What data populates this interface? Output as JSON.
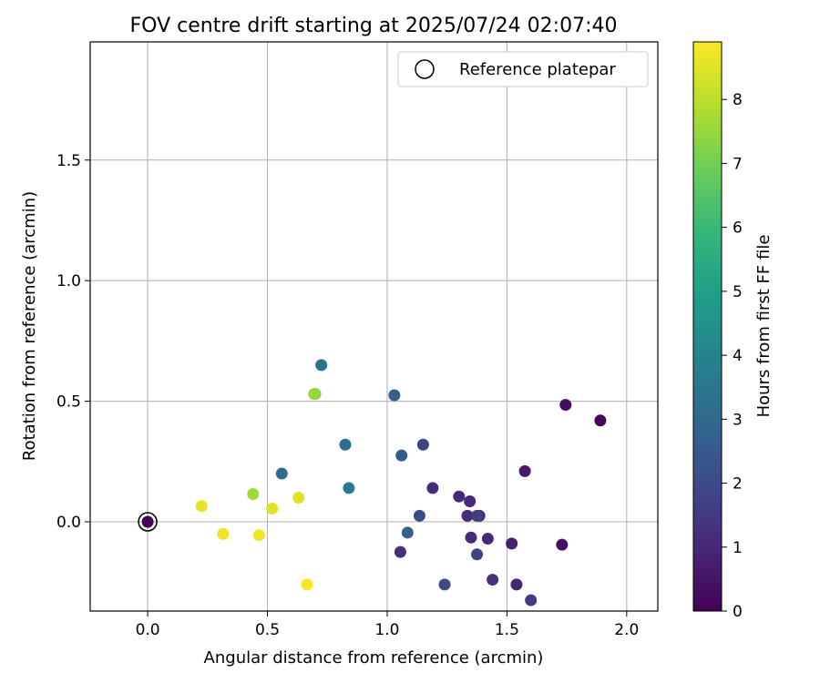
{
  "chart_data": {
    "type": "scatter",
    "title": "FOV centre drift starting at 2025/07/24 02:07:40",
    "xlabel": "Angular distance from reference (arcmin)",
    "ylabel": "Rotation from reference (arcmin)",
    "xlim": [
      -0.24,
      2.13
    ],
    "ylim": [
      -0.37,
      1.99
    ],
    "xticks": [
      0.0,
      0.5,
      1.0,
      1.5,
      2.0
    ],
    "xtick_labels": [
      "0.0",
      "0.5",
      "1.0",
      "1.5",
      "2.0"
    ],
    "yticks": [
      0.0,
      0.5,
      1.0,
      1.5
    ],
    "ytick_labels": [
      "0.0",
      "0.5",
      "1.0",
      "1.5"
    ],
    "grid": true,
    "colorbar": {
      "label": "Hours from first FF file",
      "colormap": "viridis",
      "range": [
        0,
        8.9
      ],
      "ticks": [
        0,
        1,
        2,
        3,
        4,
        5,
        6,
        7,
        8
      ],
      "tick_labels": [
        "0",
        "1",
        "2",
        "3",
        "4",
        "5",
        "6",
        "7",
        "8"
      ]
    },
    "legend": {
      "position": "top-right",
      "label": "Reference platepar"
    },
    "reference_point": {
      "x": 0.0,
      "y": 0.0
    },
    "points": [
      {
        "x": 0.0,
        "y": 0.0,
        "c": 0.0
      },
      {
        "x": 1.89,
        "y": 0.42,
        "c": 0.1
      },
      {
        "x": 1.745,
        "y": 0.485,
        "c": 0.3
      },
      {
        "x": 1.73,
        "y": -0.095,
        "c": 0.4
      },
      {
        "x": 1.575,
        "y": 0.21,
        "c": 0.6
      },
      {
        "x": 1.52,
        "y": -0.09,
        "c": 0.8
      },
      {
        "x": 1.54,
        "y": -0.26,
        "c": 0.9
      },
      {
        "x": 1.42,
        "y": -0.07,
        "c": 1.0
      },
      {
        "x": 1.345,
        "y": 0.085,
        "c": 1.0
      },
      {
        "x": 1.3,
        "y": 0.105,
        "c": 1.0
      },
      {
        "x": 1.335,
        "y": 0.025,
        "c": 1.1
      },
      {
        "x": 1.385,
        "y": 0.025,
        "c": 1.1
      },
      {
        "x": 1.35,
        "y": -0.065,
        "c": 1.1
      },
      {
        "x": 1.19,
        "y": 0.14,
        "c": 1.1
      },
      {
        "x": 1.44,
        "y": -0.24,
        "c": 1.2
      },
      {
        "x": 1.055,
        "y": -0.125,
        "c": 1.2
      },
      {
        "x": 1.6,
        "y": -0.325,
        "c": 1.6
      },
      {
        "x": 1.375,
        "y": 0.025,
        "c": 1.7
      },
      {
        "x": 1.375,
        "y": -0.135,
        "c": 1.8
      },
      {
        "x": 1.15,
        "y": 0.32,
        "c": 1.8
      },
      {
        "x": 1.135,
        "y": 0.025,
        "c": 2.0
      },
      {
        "x": 1.24,
        "y": -0.26,
        "c": 2.0
      },
      {
        "x": 1.06,
        "y": 0.275,
        "c": 2.5
      },
      {
        "x": 1.03,
        "y": 0.525,
        "c": 2.6
      },
      {
        "x": 1.085,
        "y": -0.045,
        "c": 2.7
      },
      {
        "x": 0.56,
        "y": 0.2,
        "c": 3.1
      },
      {
        "x": 0.825,
        "y": 0.32,
        "c": 3.2
      },
      {
        "x": 0.725,
        "y": 0.65,
        "c": 3.4
      },
      {
        "x": 0.84,
        "y": 0.14,
        "c": 3.6
      },
      {
        "x": 0.7,
        "y": 0.53,
        "c": 7.3
      },
      {
        "x": 0.695,
        "y": 0.53,
        "c": 7.5
      },
      {
        "x": 0.44,
        "y": 0.115,
        "c": 7.6
      },
      {
        "x": 0.63,
        "y": 0.1,
        "c": 8.5
      },
      {
        "x": 0.52,
        "y": 0.055,
        "c": 8.5
      },
      {
        "x": 0.225,
        "y": 0.065,
        "c": 8.6
      },
      {
        "x": 0.315,
        "y": -0.05,
        "c": 8.7
      },
      {
        "x": 0.465,
        "y": -0.055,
        "c": 8.7
      },
      {
        "x": 0.665,
        "y": -0.26,
        "c": 8.8
      }
    ]
  }
}
